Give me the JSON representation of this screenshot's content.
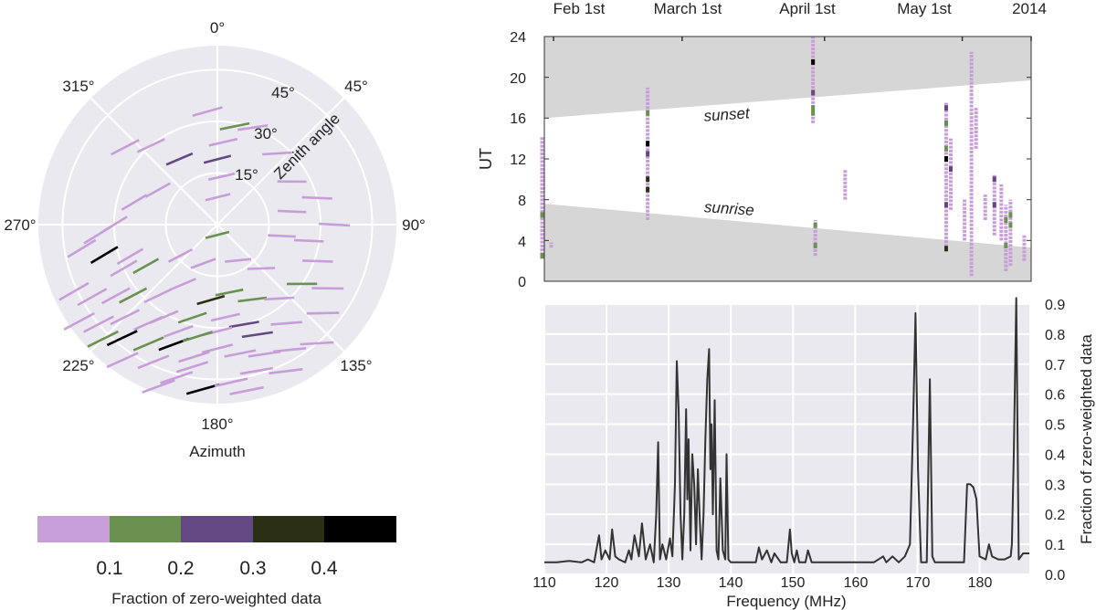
{
  "colors": {
    "bin0": "#c89ed8",
    "bin1": "#6a9150",
    "bin2": "#634883",
    "bin3": "#2b2f14",
    "bin4": "#000000",
    "panel_bg": "#e9e9ef",
    "night_band": "#d6d6d6",
    "line": "#333333"
  },
  "chart_data": [
    {
      "type": "polar-scatter",
      "name": "sky-track-plot",
      "angular_axis_label": "Azimuth",
      "radial_axis_label": "Zenith angle",
      "angular_ticks": [
        "0°",
        "45°",
        "90°",
        "135°",
        "180°",
        "225°",
        "270°",
        "315°"
      ],
      "radial_ticks": [
        "15°",
        "30°",
        "45°"
      ],
      "rmax_deg": 52,
      "tracks": [
        {
          "az": 1,
          "za": 8,
          "w": 0
        },
        {
          "az": 5,
          "za": 14,
          "w": 0
        },
        {
          "az": 0,
          "za": 19,
          "w": 2
        },
        {
          "az": 4,
          "za": 24,
          "w": 0
        },
        {
          "az": 10,
          "za": 29,
          "w": 1
        },
        {
          "az": 355,
          "za": 33,
          "w": 0
        },
        {
          "az": 20,
          "za": 30,
          "w": 0
        },
        {
          "az": 40,
          "za": 27,
          "w": 0
        },
        {
          "az": 60,
          "za": 25,
          "w": 0
        },
        {
          "az": 80,
          "za": 22,
          "w": 0
        },
        {
          "az": 100,
          "za": 19,
          "w": 0
        },
        {
          "az": 75,
          "za": 30,
          "w": 0
        },
        {
          "az": 90,
          "za": 34,
          "w": 0
        },
        {
          "az": 110,
          "za": 31,
          "w": 0
        },
        {
          "az": 330,
          "za": 22,
          "w": 2
        },
        {
          "az": 300,
          "za": 20,
          "w": 0
        },
        {
          "az": 285,
          "za": 25,
          "w": 0
        },
        {
          "az": 270,
          "za": 30,
          "w": 0
        },
        {
          "az": 255,
          "za": 34,
          "w": 4
        },
        {
          "az": 240,
          "za": 24,
          "w": 1
        },
        {
          "az": 230,
          "za": 14,
          "w": 0
        },
        {
          "az": 210,
          "za": 20,
          "w": 0
        },
        {
          "az": 200,
          "za": 12,
          "w": 0
        },
        {
          "az": 180,
          "za": 3,
          "w": 1
        },
        {
          "az": 150,
          "za": 12,
          "w": 0
        },
        {
          "az": 135,
          "za": 18,
          "w": 0
        },
        {
          "az": 155,
          "za": 24,
          "w": 1
        },
        {
          "az": 170,
          "za": 20,
          "w": 1
        },
        {
          "az": 185,
          "za": 22,
          "w": 3
        },
        {
          "az": 175,
          "za": 27,
          "w": 0
        },
        {
          "az": 195,
          "za": 28,
          "w": 1
        },
        {
          "az": 165,
          "za": 30,
          "w": 2
        },
        {
          "az": 180,
          "za": 31,
          "w": 0
        },
        {
          "az": 200,
          "za": 33,
          "w": 0
        },
        {
          "az": 140,
          "za": 28,
          "w": 0
        },
        {
          "az": 125,
          "za": 30,
          "w": 1
        },
        {
          "az": 215,
          "za": 35,
          "w": 0
        },
        {
          "az": 225,
          "za": 38,
          "w": 0
        },
        {
          "az": 235,
          "za": 36,
          "w": 0
        },
        {
          "az": 210,
          "za": 40,
          "w": 1
        },
        {
          "az": 220,
          "za": 43,
          "w": 4
        },
        {
          "az": 230,
          "za": 45,
          "w": 0
        },
        {
          "az": 240,
          "za": 42,
          "w": 0
        },
        {
          "az": 200,
          "za": 37,
          "w": 4
        },
        {
          "az": 190,
          "za": 39,
          "w": 0
        },
        {
          "az": 180,
          "za": 36,
          "w": 0
        },
        {
          "az": 170,
          "za": 38,
          "w": 0
        },
        {
          "az": 160,
          "za": 40,
          "w": 0
        },
        {
          "az": 150,
          "za": 42,
          "w": 0
        },
        {
          "az": 140,
          "za": 45,
          "w": 0
        },
        {
          "az": 130,
          "za": 40,
          "w": 0
        },
        {
          "az": 205,
          "za": 44,
          "w": 0
        },
        {
          "az": 195,
          "za": 46,
          "w": 0
        },
        {
          "az": 185,
          "za": 48,
          "w": 4
        },
        {
          "az": 175,
          "za": 46,
          "w": 0
        },
        {
          "az": 165,
          "za": 44,
          "w": 0
        },
        {
          "az": 155,
          "za": 47,
          "w": 0
        },
        {
          "az": 215,
          "za": 48,
          "w": 0
        },
        {
          "az": 225,
          "za": 47,
          "w": 1
        },
        {
          "az": 245,
          "za": 46,
          "w": 0
        },
        {
          "az": 235,
          "za": 49,
          "w": 0
        },
        {
          "az": 190,
          "za": 42,
          "w": 0
        },
        {
          "az": 210,
          "za": 31,
          "w": 0
        },
        {
          "az": 245,
          "za": 30,
          "w": 0
        },
        {
          "az": 260,
          "za": 40,
          "w": 0
        },
        {
          "az": 265,
          "za": 35,
          "w": 0
        },
        {
          "az": 220,
          "za": 27,
          "w": 0
        },
        {
          "az": 120,
          "za": 37,
          "w": 0
        },
        {
          "az": 145,
          "za": 35,
          "w": 0
        },
        {
          "az": 200,
          "za": 50,
          "w": 0
        },
        {
          "az": 170,
          "za": 49,
          "w": 0
        },
        {
          "az": 230,
          "za": 32,
          "w": 1
        },
        {
          "az": 250,
          "za": 27,
          "w": 0
        },
        {
          "az": 320,
          "za": 30,
          "w": 0
        },
        {
          "az": 310,
          "za": 35,
          "w": 0
        },
        {
          "az": 100,
          "za": 27,
          "w": 0
        },
        {
          "az": 160,
          "za": 34,
          "w": 2
        },
        {
          "az": 190,
          "za": 33,
          "w": 1
        }
      ]
    },
    {
      "type": "scatter",
      "name": "time-of-day-plot",
      "ylabel": "UT",
      "ylim": [
        0,
        24
      ],
      "y_ticks": [
        "0",
        "4",
        "8",
        "12",
        "16",
        "20",
        "24"
      ],
      "x_range_days": [
        0,
        106
      ],
      "top_ticks": [
        {
          "day": 0,
          "label": "Feb 1st"
        },
        {
          "day": 28,
          "label": "March 1st"
        },
        {
          "day": 59,
          "label": "April 1st"
        },
        {
          "day": 89,
          "label": "May 1st"
        },
        {
          "day": 120,
          "label": "2014"
        }
      ],
      "sunset": {
        "label": "sunset",
        "start_ut": 16.0,
        "end_ut": 19.7
      },
      "sunrise": {
        "label": "sunrise",
        "start_ut": 7.6,
        "end_ut": 3.3
      },
      "columns": [
        {
          "day": -0.5,
          "y0": 2.2,
          "y1": 14.2,
          "marks": [
            {
              "y": 6.5,
              "w": 1
            },
            {
              "y": 2.5,
              "w": 1
            }
          ]
        },
        {
          "day": 1.5,
          "y0": 3.3,
          "y1": 3.8,
          "marks": []
        },
        {
          "day": 22.5,
          "y0": 6.0,
          "y1": 19.0,
          "marks": [
            {
              "y": 16.5,
              "w": 1
            },
            {
              "y": 13.5,
              "w": 4
            },
            {
              "y": 12.5,
              "w": 2
            },
            {
              "y": 10.0,
              "w": 3
            },
            {
              "y": 9.0,
              "w": 3
            }
          ]
        },
        {
          "day": 58.5,
          "y0": 15.5,
          "y1": 24.0,
          "marks": [
            {
              "y": 21.5,
              "w": 4
            },
            {
              "y": 18.5,
              "w": 2
            },
            {
              "y": 17.0,
              "w": 1
            },
            {
              "y": 16.5,
              "w": 1
            }
          ]
        },
        {
          "day": 59.0,
          "y0": 2.5,
          "y1": 6.0,
          "marks": [
            {
              "y": 5.5,
              "w": 1
            },
            {
              "y": 3.5,
              "w": 1
            }
          ]
        },
        {
          "day": 65.5,
          "y0": 8.0,
          "y1": 11.0,
          "marks": []
        },
        {
          "day": 87.5,
          "y0": 3.0,
          "y1": 17.5,
          "marks": [
            {
              "y": 17.0,
              "w": 2
            },
            {
              "y": 15.5,
              "w": 1
            },
            {
              "y": 13.0,
              "w": 1
            },
            {
              "y": 12.0,
              "w": 4
            },
            {
              "y": 7.5,
              "w": 2
            },
            {
              "y": 3.2,
              "w": 3
            }
          ]
        },
        {
          "day": 88.5,
          "y0": 7.0,
          "y1": 14.0,
          "marks": [
            {
              "y": 11.0,
              "w": 2
            }
          ]
        },
        {
          "day": 91.5,
          "y0": 4.0,
          "y1": 8.0,
          "marks": []
        },
        {
          "day": 93.0,
          "y0": 0.5,
          "y1": 22.5,
          "marks": []
        },
        {
          "day": 94.0,
          "y0": 13.0,
          "y1": 17.0,
          "marks": []
        },
        {
          "day": 96.0,
          "y0": 6.0,
          "y1": 8.5,
          "marks": []
        },
        {
          "day": 98.0,
          "y0": 4.5,
          "y1": 10.5,
          "marks": [
            {
              "y": 10.0,
              "w": 2
            },
            {
              "y": 7.5,
              "w": 2
            }
          ]
        },
        {
          "day": 99.5,
          "y0": 4.0,
          "y1": 9.5,
          "marks": []
        },
        {
          "day": 100.5,
          "y0": 1.0,
          "y1": 7.5,
          "marks": [
            {
              "y": 6.0,
              "w": 1
            },
            {
              "y": 3.5,
              "w": 1
            }
          ]
        },
        {
          "day": 101.5,
          "y0": 1.5,
          "y1": 8.0,
          "marks": [
            {
              "y": 6.5,
              "w": 1
            },
            {
              "y": 5.5,
              "w": 1
            }
          ]
        },
        {
          "day": 104.5,
          "y0": 2.0,
          "y1": 4.5,
          "marks": []
        }
      ]
    },
    {
      "type": "line",
      "name": "frequency-plot",
      "xlabel": "Frequency (MHz)",
      "ylabel": "Fraction of zero-weighted data",
      "xlim": [
        110,
        188
      ],
      "ylim": [
        0,
        0.9
      ],
      "x_ticks": [
        "110",
        "120",
        "130",
        "140",
        "150",
        "160",
        "170",
        "180"
      ],
      "y_ticks": [
        "0.0",
        "0.1",
        "0.2",
        "0.3",
        "0.4",
        "0.5",
        "0.6",
        "0.7",
        "0.8",
        "0.9"
      ],
      "x": [
        110,
        112,
        114,
        116,
        117,
        118,
        118.8,
        119.2,
        119.8,
        120.5,
        120.9,
        121.4,
        122,
        123,
        123.6,
        124,
        124.5,
        125.2,
        125.7,
        126.3,
        127,
        127.6,
        128,
        128.3,
        128.6,
        129,
        129.6,
        130.2,
        130.6,
        131,
        131.3,
        131.6,
        131.9,
        132.2,
        132.5,
        132.8,
        133,
        133.2,
        133.5,
        133.8,
        134.1,
        134.4,
        134.7,
        135,
        135.3,
        135.6,
        135.9,
        136.2,
        136.5,
        136.7,
        136.9,
        137.1,
        137.4,
        137.7,
        138,
        138.3,
        138.7,
        139.1,
        139.3,
        139.6,
        140,
        142,
        144,
        144.5,
        145,
        145.8,
        146.5,
        147,
        148,
        149,
        149.5,
        149.8,
        150.2,
        150.6,
        151,
        152,
        152.4,
        153,
        155,
        160,
        163,
        164.5,
        165,
        166,
        167,
        168,
        168.8,
        169.3,
        169.7,
        170.1,
        170.6,
        171,
        171.5,
        172,
        172.4,
        172.8,
        173.2,
        174,
        175,
        176,
        177,
        177.5,
        178,
        178.5,
        179,
        179.5,
        180,
        181,
        181.5,
        182,
        183,
        184,
        185,
        185.2,
        185.5,
        185.9,
        186.3,
        187,
        188
      ],
      "y": [
        0.04,
        0.04,
        0.045,
        0.04,
        0.05,
        0.04,
        0.13,
        0.05,
        0.08,
        0.05,
        0.15,
        0.06,
        0.05,
        0.04,
        0.08,
        0.05,
        0.13,
        0.06,
        0.17,
        0.05,
        0.1,
        0.04,
        0.2,
        0.44,
        0.05,
        0.1,
        0.05,
        0.12,
        0.06,
        0.3,
        0.71,
        0.55,
        0.2,
        0.05,
        0.2,
        0.55,
        0.25,
        0.45,
        0.08,
        0.4,
        0.3,
        0.1,
        0.35,
        0.18,
        0.05,
        0.2,
        0.45,
        0.65,
        0.75,
        0.35,
        0.5,
        0.2,
        0.58,
        0.08,
        0.05,
        0.32,
        0.08,
        0.05,
        0.4,
        0.05,
        0.04,
        0.04,
        0.04,
        0.09,
        0.05,
        0.08,
        0.04,
        0.07,
        0.04,
        0.04,
        0.15,
        0.07,
        0.04,
        0.08,
        0.04,
        0.04,
        0.08,
        0.04,
        0.04,
        0.04,
        0.04,
        0.06,
        0.04,
        0.06,
        0.04,
        0.06,
        0.1,
        0.5,
        0.87,
        0.35,
        0.04,
        0.04,
        0.04,
        0.65,
        0.06,
        0.04,
        0.04,
        0.04,
        0.04,
        0.04,
        0.04,
        0.04,
        0.3,
        0.3,
        0.29,
        0.25,
        0.06,
        0.05,
        0.1,
        0.06,
        0.05,
        0.05,
        0.06,
        0.1,
        0.4,
        0.92,
        0.05,
        0.07,
        0.07
      ]
    }
  ],
  "colorbar": {
    "label": "Fraction of zero-weighted data",
    "tick_labels": [
      "0.1",
      "0.2",
      "0.3",
      "0.4"
    ]
  }
}
